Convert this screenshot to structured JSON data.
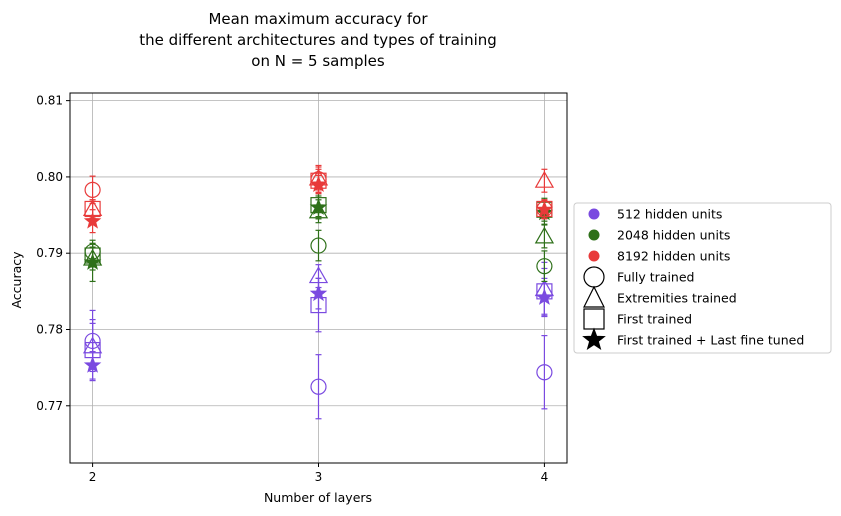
{
  "chart_data": {
    "type": "scatter",
    "title": [
      "Mean maximum accuracy for",
      "the different architectures and types of training",
      "on N = 5 samples"
    ],
    "xlabel": "Number of layers",
    "ylabel": "Accuracy",
    "x_ticks": [
      "2",
      "3",
      "4"
    ],
    "x_values": [
      2,
      3,
      4
    ],
    "xlim": [
      1.9,
      4.1
    ],
    "ylim": [
      0.7625,
      0.811
    ],
    "y_ticks": [
      0.77,
      0.78,
      0.79,
      0.8,
      0.81
    ],
    "y_tick_labels": [
      "0.77",
      "0.78",
      "0.79",
      "0.80",
      "0.81"
    ],
    "grid": true,
    "legend_position": "right, outside plot",
    "colors": {
      "512 hidden units": "#7a4ae0",
      "2048 hidden units": "#2e7019",
      "8192 hidden units": "#e83a3a"
    },
    "legend": {
      "colors": [
        "512 hidden units",
        "2048 hidden units",
        "8192 hidden units"
      ],
      "markers": [
        {
          "label": "Fully trained",
          "marker": "circle"
        },
        {
          "label": "Extremities trained",
          "marker": "triangle"
        },
        {
          "label": "First trained",
          "marker": "square"
        },
        {
          "label": "First trained + Last fine tuned",
          "marker": "star"
        }
      ]
    },
    "series": [
      {
        "hidden": "512 hidden units",
        "training": "Fully trained",
        "marker": "circle",
        "values": [
          0.7785,
          0.7725,
          0.7744
        ],
        "errors": [
          0.004,
          0.0042,
          0.0048
        ]
      },
      {
        "hidden": "512 hidden units",
        "training": "Extremities trained",
        "marker": "triangle",
        "values": [
          0.7778,
          0.787,
          0.7853
        ],
        "errors": [
          0.003,
          0.0015,
          0.0035
        ]
      },
      {
        "hidden": "512 hidden units",
        "training": "First trained",
        "marker": "square",
        "values": [
          0.7773,
          0.7832,
          0.785
        ],
        "errors": [
          0.004,
          0.0035,
          0.003
        ]
      },
      {
        "hidden": "512 hidden units",
        "training": "First trained + Last fine tuned",
        "marker": "star",
        "values": [
          0.7753,
          0.7847,
          0.7842
        ],
        "errors": [
          0.0018,
          0.002,
          0.0025
        ]
      },
      {
        "hidden": "2048 hidden units",
        "training": "Fully trained",
        "marker": "circle",
        "values": [
          0.7902,
          0.791,
          0.7883
        ],
        "errors": [
          0.0015,
          0.002,
          0.002
        ]
      },
      {
        "hidden": "2048 hidden units",
        "training": "Extremities trained",
        "marker": "triangle",
        "values": [
          0.7893,
          0.7955,
          0.7922
        ],
        "errors": [
          0.0015,
          0.0015,
          0.0015
        ]
      },
      {
        "hidden": "2048 hidden units",
        "training": "First trained",
        "marker": "square",
        "values": [
          0.7897,
          0.7963,
          0.7957
        ],
        "errors": [
          0.0015,
          0.0015,
          0.0015
        ]
      },
      {
        "hidden": "2048 hidden units",
        "training": "First trained + Last fine tuned",
        "marker": "star",
        "values": [
          0.7888,
          0.796,
          0.7953
        ],
        "errors": [
          0.0025,
          0.0015,
          0.0015
        ]
      },
      {
        "hidden": "8192 hidden units",
        "training": "Fully trained",
        "marker": "circle",
        "values": [
          0.7983,
          0.7997,
          0.7958
        ],
        "errors": [
          0.0018,
          0.0018,
          0.0012
        ]
      },
      {
        "hidden": "8192 hidden units",
        "training": "Extremities trained",
        "marker": "triangle",
        "values": [
          0.7958,
          0.7998,
          0.7995
        ],
        "errors": [
          0.0012,
          0.0015,
          0.0015
        ]
      },
      {
        "hidden": "8192 hidden units",
        "training": "First trained",
        "marker": "square",
        "values": [
          0.7958,
          0.7995,
          0.7958
        ],
        "errors": [
          0.0012,
          0.0015,
          0.0012
        ]
      },
      {
        "hidden": "8192 hidden units",
        "training": "First trained + Last fine tuned",
        "marker": "star",
        "values": [
          0.7942,
          0.799,
          0.7957
        ],
        "errors": [
          0.0015,
          0.0012,
          0.0012
        ]
      }
    ]
  }
}
